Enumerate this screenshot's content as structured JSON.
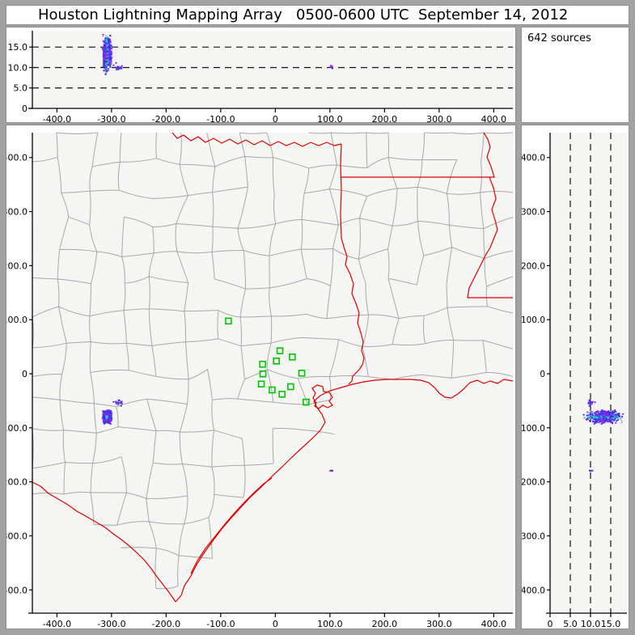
{
  "title": "Houston Lightning Mapping Array   0500-0600 UTC  September 14, 2012",
  "sources_label": "642 sources",
  "colors": {
    "frame_gray": "#a2a2a2",
    "panel_white": "#ffffff",
    "plot_bg": "#f5f5f3",
    "axis_black": "#000000",
    "county_gray": "#a8a8a8",
    "state_border_red": "#dd0000",
    "station_green": "#00c800",
    "dot_palette": [
      "#2828e0",
      "#4a22d8",
      "#7d26e8",
      "#a128f0",
      "#5a48f0",
      "#3a3ae0"
    ],
    "dot_core_palette": [
      "#20c8e8",
      "#30d080"
    ]
  },
  "chart_data": [
    {
      "type": "scatter",
      "panel": "altitude-vs-east-west",
      "xlim": [
        -445,
        435
      ],
      "ylim": [
        0,
        19
      ],
      "xtick_values": [
        -400,
        -300,
        -200,
        -100,
        0,
        100,
        200,
        300,
        400
      ],
      "xtick_labels": [
        "-400.0",
        "-300.0",
        "-200.0",
        "-100.0",
        "0",
        "100.0",
        "200.0",
        "300.0",
        "400.0"
      ],
      "ytick_values": [
        0,
        5,
        10,
        15
      ],
      "ytick_labels": [
        "0",
        "5.0",
        "10.0",
        "15.0"
      ],
      "dashed_y_km": [
        5,
        10,
        15
      ],
      "legend": "none",
      "grid": "dashed horizontal altitude reference lines"
    },
    {
      "type": "scatter",
      "panel": "plan-view-map",
      "xlim": [
        -445,
        435
      ],
      "ylim": [
        -443,
        446
      ],
      "xtick_values": [
        -400,
        -300,
        -200,
        -100,
        0,
        100,
        200,
        300,
        400
      ],
      "xtick_labels": [
        "-400.0",
        "-300.0",
        "-200.0",
        "-100.0",
        "0",
        "100.0",
        "200.0",
        "300.0",
        "400.0"
      ],
      "ytick_values": [
        400,
        300,
        200,
        100,
        0,
        -100,
        -200,
        -300,
        -400
      ],
      "ytick_labels": [
        "400.0",
        "300.0",
        "200.0",
        "100.0",
        "0",
        "-100.0",
        "-200.0",
        "-300.0",
        "-400.0"
      ],
      "basemap": "Texas-Louisiana county outlines, red state borders and Gulf coastline",
      "stations_km": [
        [
          -85.9,
          97.5
        ],
        [
          8.4,
          42.4
        ],
        [
          31.1,
          31.0
        ],
        [
          1.9,
          23.5
        ],
        [
          -23.3,
          17.5
        ],
        [
          -22.7,
          -0.4
        ],
        [
          48.4,
          1.0
        ],
        [
          -25.6,
          -19.0
        ],
        [
          28.1,
          -24.0
        ],
        [
          -5.9,
          -30.0
        ],
        [
          12.3,
          -37.9
        ],
        [
          56.3,
          -52.5
        ]
      ]
    },
    {
      "type": "scatter",
      "panel": "north-south-vs-altitude",
      "xlim": [
        0,
        19
      ],
      "ylim": [
        -443,
        446
      ],
      "xtick_values": [
        0,
        5,
        10,
        15
      ],
      "xtick_labels": [
        "0",
        "5.0",
        "10.0",
        "15.0"
      ],
      "ytick_values": [
        400,
        300,
        200,
        100,
        0,
        -100,
        -200,
        -300,
        -400
      ],
      "ytick_labels": [
        "400.0",
        "300.0",
        "200.0",
        "100.0",
        "0",
        "-100.0",
        "-200.0",
        "-300.0",
        "-400.0"
      ],
      "dashed_x_km": [
        5,
        10,
        15
      ]
    }
  ],
  "lightning": {
    "total_sources": 642,
    "clusters": [
      {
        "name": "main-storm",
        "count": 610,
        "ew_km": -308,
        "ns_km": -80,
        "ew_spread": 5,
        "ns_spread": 13,
        "alt_mean_km": 13.3,
        "alt_spread_km": 3.6,
        "alt_range_km": [
          7.8,
          19.0
        ]
      },
      {
        "name": "north-east-wisp",
        "count": 26,
        "ew_km": -287,
        "ns_km": -54,
        "ew_spread": 6,
        "ns_spread": 6,
        "alt_mean_km": 10.0,
        "alt_spread_km": 0.9,
        "alt_range_km": [
          9.0,
          11.5
        ]
      },
      {
        "name": "isolated-gulf-flash",
        "count": 6,
        "ew_km": 102,
        "ns_km": -179,
        "ew_spread": 1.5,
        "ns_spread": 1.5,
        "alt_mean_km": 10.3,
        "alt_spread_km": 0.4,
        "alt_range_km": [
          9.8,
          10.8
        ]
      }
    ]
  }
}
